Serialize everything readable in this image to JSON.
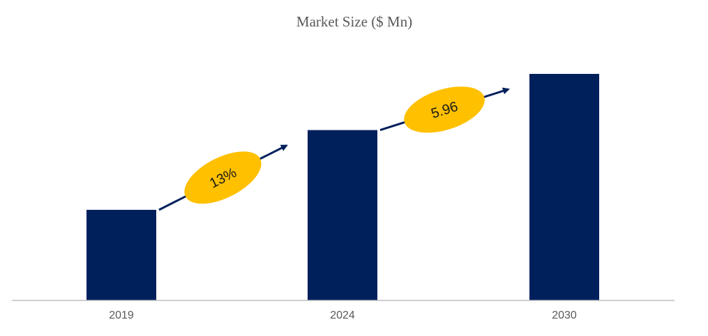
{
  "chart_data": {
    "type": "bar",
    "title": "Market Size ($ Mn)",
    "categories": [
      "2019",
      "2024",
      "2030"
    ],
    "values": [
      100,
      188,
      250
    ],
    "ylim": [
      0,
      270
    ],
    "xlabel": "",
    "ylabel": "",
    "grid": false,
    "legend": "none",
    "annotations": [
      {
        "from": 0,
        "to": 1,
        "label": "13%"
      },
      {
        "from": 1,
        "to": 2,
        "label": "5.96"
      }
    ]
  },
  "colors": {
    "bar": "#00205c",
    "badge": "#ffc000",
    "arrow": "#00205c",
    "axis": "#bfbfbf",
    "text": "#595959"
  }
}
